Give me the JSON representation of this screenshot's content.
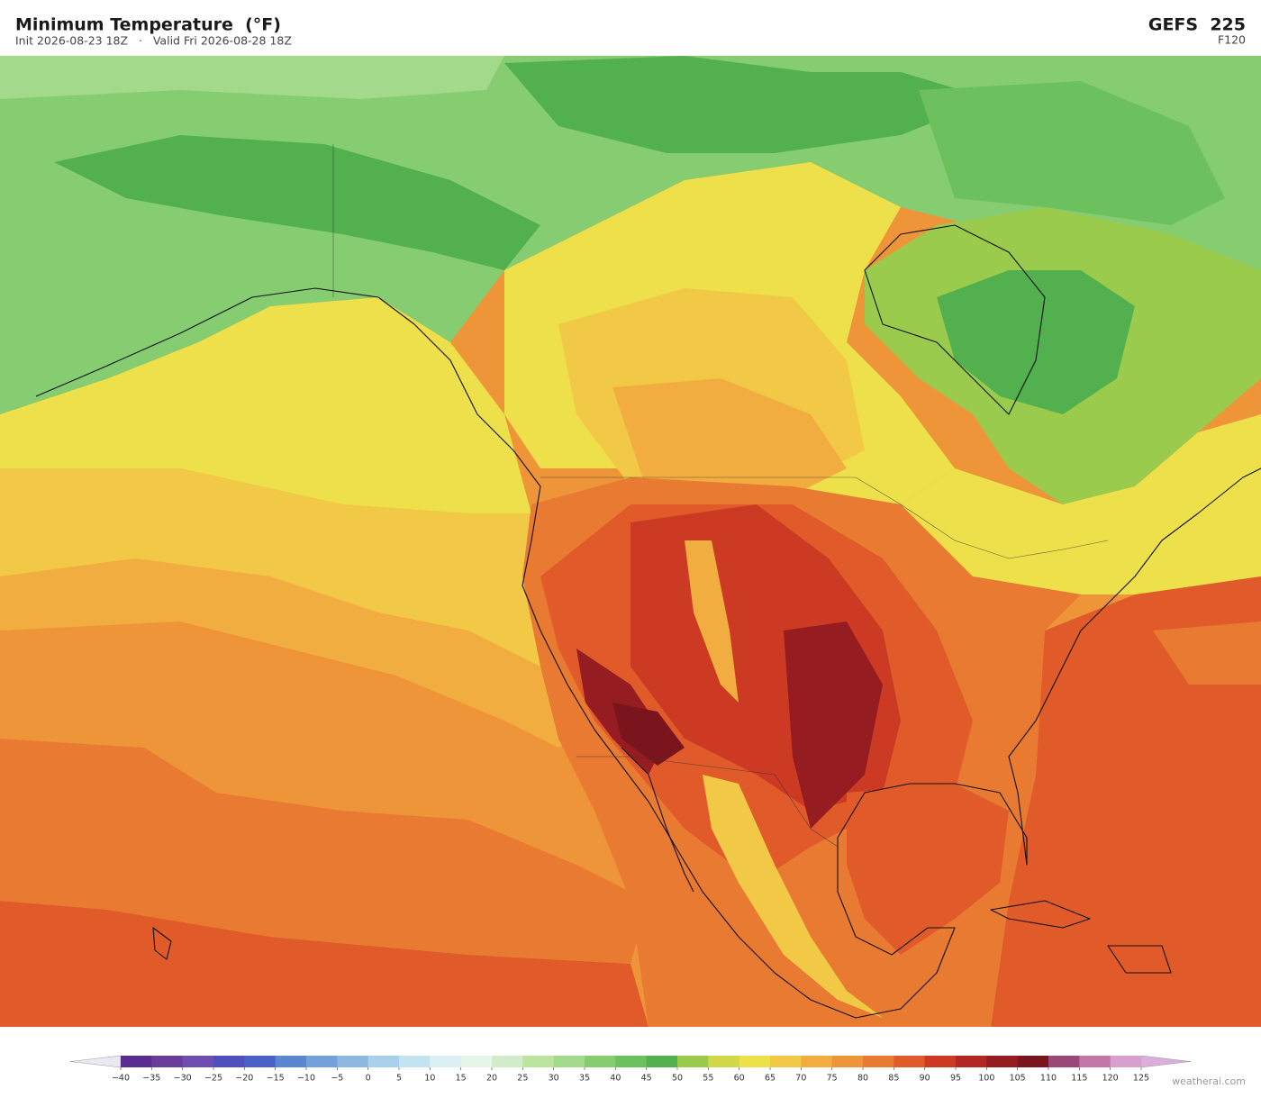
{
  "header": {
    "title": "Minimum Temperature  (°F)",
    "subtitle": "Init 2026-08-23 18Z   ·   Valid Fri 2026-08-28 18Z",
    "model": "GEFS  225",
    "forecast_hour": "F120"
  },
  "colorbar": {
    "ticks": [
      {
        "value": -40,
        "label": "−40"
      },
      {
        "value": -35,
        "label": "−35"
      },
      {
        "value": -30,
        "label": "−30"
      },
      {
        "value": -25,
        "label": "−25"
      },
      {
        "value": -20,
        "label": "−20"
      },
      {
        "value": -15,
        "label": "−15"
      },
      {
        "value": -10,
        "label": "−10"
      },
      {
        "value": -5,
        "label": "−5"
      },
      0,
      5,
      10,
      15,
      20,
      25,
      30,
      35,
      40,
      45,
      50,
      55,
      60,
      65,
      70,
      75,
      80,
      85,
      90,
      95,
      100,
      105,
      110,
      115,
      120,
      125
    ],
    "colors": [
      "#5a2d91",
      "#6a3d9a",
      "#6e4fb0",
      "#4f4fc0",
      "#4a62c8",
      "#5b86d0",
      "#74a1d8",
      "#8fb8e0",
      "#a8d0ea",
      "#c4e3f1",
      "#dcf0f3",
      "#e6f5ea",
      "#d2ecca",
      "#bde3a0",
      "#a2d98a",
      "#86cd72",
      "#6cc05d",
      "#52b04e",
      "#9acb4c",
      "#d0d84a",
      "#ede04a",
      "#f2c946",
      "#f2ad40",
      "#ee9539",
      "#e97a32",
      "#e05a2a",
      "#cc3a24",
      "#b22722",
      "#951c20",
      "#7a151e",
      "#9a4878",
      "#c277a8",
      "#d8a0cc"
    ],
    "under_color": "#ece8f2",
    "over_color": "#dcaedc"
  },
  "footer": {
    "watermark": "weatherai.com"
  }
}
